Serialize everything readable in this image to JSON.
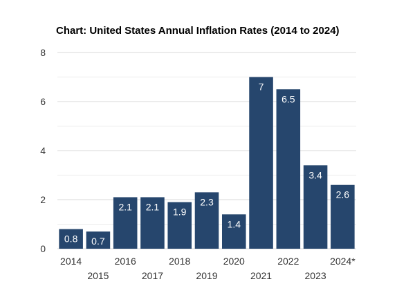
{
  "chart_data": {
    "type": "bar",
    "title": "Chart: United States Annual Inflation Rates (2014 to 2024)",
    "xlabel": "",
    "ylabel": "",
    "categories": [
      "2014",
      "2015",
      "2016",
      "2017",
      "2018",
      "2019",
      "2020",
      "2021",
      "2022",
      "2023",
      "2024*"
    ],
    "values": [
      0.8,
      0.7,
      2.1,
      2.1,
      1.9,
      2.3,
      1.4,
      7,
      6.5,
      3.4,
      2.6
    ],
    "value_labels": [
      "0.8",
      "0.7",
      "2.1",
      "2.1",
      "1.9",
      "2.3",
      "1.4",
      "7",
      "6.5",
      "3.4",
      "2.6"
    ],
    "ylim": [
      0,
      8
    ],
    "y_ticks": [
      "0",
      "2",
      "4",
      "6",
      "8"
    ],
    "grid": true,
    "legend": "none",
    "colors": {
      "bar": "#26466d",
      "grid": "#d9d9d9",
      "label": "#ffffff",
      "axis_text": "#333333"
    }
  }
}
